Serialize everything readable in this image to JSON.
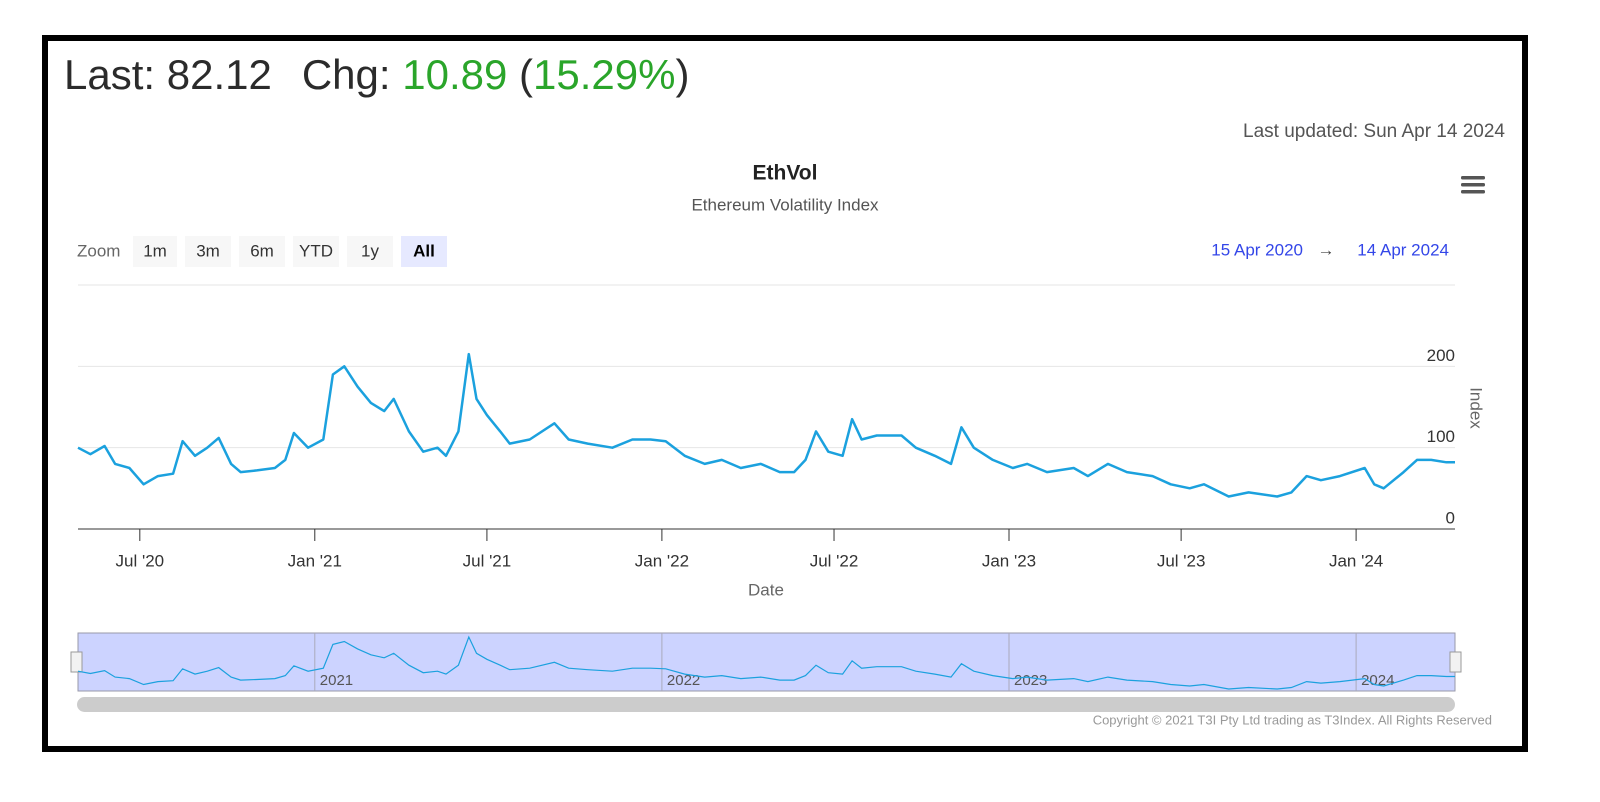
{
  "header": {
    "last_label": "Last:",
    "last": "82.12",
    "chg_label": "Chg:",
    "chg": "10.89",
    "paren_open": "(",
    "chg_pct": "15.29%",
    "paren_close": ")",
    "updated": "Last updated: Sun Apr 14 2024"
  },
  "zoom": {
    "label": "Zoom",
    "buttons": [
      "1m",
      "3m",
      "6m",
      "YTD",
      "1y",
      "All"
    ],
    "selected": "All"
  },
  "range": {
    "from": "15 Apr 2020",
    "arrow": "→",
    "to": "14 Apr 2024"
  },
  "copyright": "Copyright © 2021 T3I Pty Ltd trading as T3Index. All Rights Reserved",
  "chart_data": {
    "type": "line",
    "title": "EthVol",
    "subtitle": "Ethereum Volatility Index",
    "x_label": "Date",
    "y_label": "Index",
    "color": "#1ba1de",
    "x": [
      "2020-04-27",
      "2020-05-10",
      "2020-05-25",
      "2020-06-05",
      "2020-06-20",
      "2020-07-05",
      "2020-07-20",
      "2020-08-05",
      "2020-08-15",
      "2020-08-28",
      "2020-09-10",
      "2020-09-22",
      "2020-10-05",
      "2020-10-15",
      "2020-11-01",
      "2020-11-20",
      "2020-12-01",
      "2020-12-10",
      "2020-12-25",
      "2021-01-10",
      "2021-01-20",
      "2021-02-01",
      "2021-02-15",
      "2021-03-01",
      "2021-03-15",
      "2021-03-25",
      "2021-04-10",
      "2021-04-25",
      "2021-05-10",
      "2021-05-19",
      "2021-06-01",
      "2021-06-12",
      "2021-06-20",
      "2021-07-01",
      "2021-07-15",
      "2021-07-25",
      "2021-08-15",
      "2021-09-10",
      "2021-09-25",
      "2021-10-15",
      "2021-11-10",
      "2021-12-01",
      "2021-12-20",
      "2022-01-05",
      "2022-01-25",
      "2022-02-15",
      "2022-03-05",
      "2022-03-25",
      "2022-04-15",
      "2022-05-05",
      "2022-05-20",
      "2022-06-01",
      "2022-06-12",
      "2022-06-25",
      "2022-07-10",
      "2022-07-20",
      "2022-07-30",
      "2022-08-15",
      "2022-09-10",
      "2022-09-25",
      "2022-10-15",
      "2022-11-01",
      "2022-11-12",
      "2022-11-25",
      "2022-12-15",
      "2023-01-05",
      "2023-01-20",
      "2023-02-10",
      "2023-03-10",
      "2023-03-25",
      "2023-04-15",
      "2023-05-05",
      "2023-06-01",
      "2023-06-20",
      "2023-07-10",
      "2023-07-25",
      "2023-08-20",
      "2023-09-10",
      "2023-10-10",
      "2023-10-25",
      "2023-11-10",
      "2023-11-25",
      "2023-12-15",
      "2024-01-10",
      "2024-01-20",
      "2024-01-30",
      "2024-02-20",
      "2024-03-05",
      "2024-03-20",
      "2024-04-05",
      "2024-04-14"
    ],
    "values": [
      100,
      92,
      102,
      80,
      75,
      55,
      65,
      68,
      108,
      90,
      100,
      112,
      80,
      70,
      72,
      75,
      85,
      118,
      100,
      110,
      190,
      200,
      175,
      155,
      145,
      160,
      120,
      95,
      100,
      90,
      120,
      215,
      160,
      140,
      120,
      105,
      110,
      130,
      110,
      105,
      100,
      110,
      110,
      108,
      90,
      80,
      85,
      75,
      80,
      70,
      70,
      85,
      120,
      95,
      90,
      135,
      110,
      115,
      115,
      100,
      90,
      80,
      125,
      100,
      85,
      75,
      80,
      70,
      75,
      65,
      80,
      70,
      65,
      55,
      50,
      55,
      40,
      45,
      40,
      45,
      65,
      60,
      65,
      75,
      55,
      50,
      70,
      85,
      85,
      82,
      82.12
    ],
    "xlim": [
      "2020-04-27",
      "2024-04-14"
    ],
    "xticks": [
      {
        "value": "2020-07-01",
        "label": "Jul '20"
      },
      {
        "value": "2021-01-01",
        "label": "Jan '21"
      },
      {
        "value": "2021-07-01",
        "label": "Jul '21"
      },
      {
        "value": "2022-01-01",
        "label": "Jan '22"
      },
      {
        "value": "2022-07-01",
        "label": "Jul '22"
      },
      {
        "value": "2023-01-01",
        "label": "Jan '23"
      },
      {
        "value": "2023-07-01",
        "label": "Jul '23"
      },
      {
        "value": "2024-01-01",
        "label": "Jan '24"
      }
    ],
    "ylim": [
      0,
      300
    ],
    "yticks": [
      0,
      100,
      200
    ],
    "grid": true,
    "navigator": {
      "xticks": [
        {
          "value": "2021-01-01",
          "label": "2021"
        },
        {
          "value": "2022-01-01",
          "label": "2022"
        },
        {
          "value": "2023-01-01",
          "label": "2023"
        },
        {
          "value": "2024-01-01",
          "label": "2024"
        }
      ]
    }
  }
}
